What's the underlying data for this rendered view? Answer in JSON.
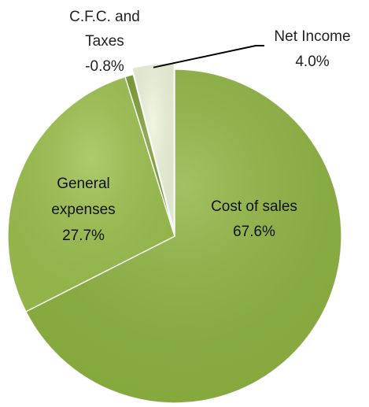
{
  "chart_data": {
    "type": "pie",
    "title": "",
    "slices": [
      {
        "label": "Cost of sales",
        "value": 67.6,
        "value_label": "67.6%",
        "color": "#8fb441"
      },
      {
        "label": "General expenses",
        "value": 27.7,
        "value_label": "27.7%",
        "color": "#9cc04d"
      },
      {
        "label": "C.F.C. and Taxes",
        "value": 0.8,
        "value_label": "-0.8%",
        "color": "#7f9f36"
      },
      {
        "label": "Net Income",
        "value": 4.0,
        "value_label": "4.0%",
        "color": "#eef5dc"
      }
    ],
    "legend": "none",
    "labels_inside": [
      "Cost of sales",
      "General expenses"
    ],
    "labels_outside": [
      "C.F.C. and Taxes",
      "Net Income"
    ],
    "leader_line_for": "Net Income"
  }
}
